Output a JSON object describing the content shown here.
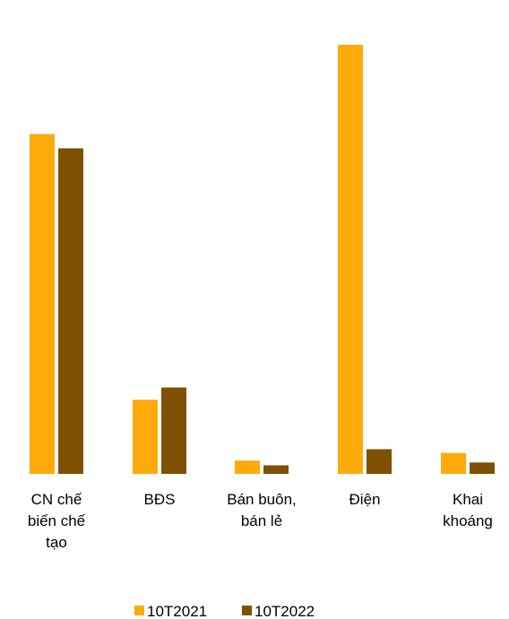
{
  "chart_data": {
    "type": "bar",
    "categories": [
      [
        "CN chế",
        "biến chế",
        "tạo"
      ],
      [
        "BĐS"
      ],
      [
        "Bán buôn,",
        "bán lẻ"
      ],
      [
        "Điện"
      ],
      [
        "Khai",
        "khoáng"
      ]
    ],
    "series": [
      {
        "name": "10T2021",
        "color": "#FFA90A",
        "values": [
          358,
          78,
          14,
          452,
          22
        ]
      },
      {
        "name": "10T2022",
        "color": "#7F5000",
        "values": [
          343,
          91,
          9,
          26,
          12
        ]
      }
    ],
    "ylim": [
      0,
      452
    ],
    "grid": false,
    "legend": "bottom"
  }
}
